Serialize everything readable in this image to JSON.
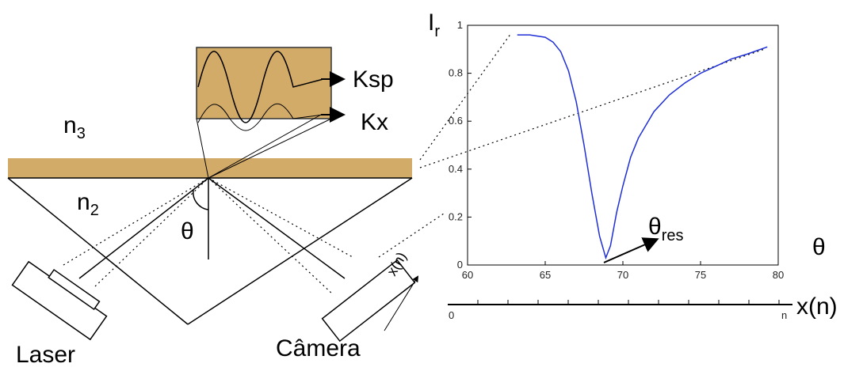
{
  "diagram": {
    "medium_top": {
      "base": "n",
      "sub": "3"
    },
    "medium_prism": {
      "base": "n",
      "sub": "2"
    },
    "angle": "θ",
    "laser": "Laser",
    "camera": "Câmera",
    "wave_sp": "Ksp",
    "wave_x": "Kx",
    "camera_axis": "x(n)",
    "scale": {
      "start": "0",
      "end": "n",
      "label": "x(n)"
    }
  },
  "chart_data": {
    "type": "line",
    "y_label": {
      "base": "I",
      "sub": "r"
    },
    "x_label": "θ",
    "annotation": {
      "base": "θ",
      "sub": "res"
    },
    "x": [
      63.2,
      64,
      65,
      65.5,
      66,
      66.5,
      67,
      67.5,
      68,
      68.5,
      68.9,
      69.2,
      69.6,
      70,
      70.5,
      71,
      72,
      73,
      74,
      75,
      76,
      77,
      78,
      79.3
    ],
    "series": [
      {
        "color": "#1f2fd6",
        "values": [
          0.96,
          0.96,
          0.95,
          0.93,
          0.89,
          0.81,
          0.68,
          0.5,
          0.3,
          0.12,
          0.03,
          0.08,
          0.22,
          0.33,
          0.45,
          0.53,
          0.64,
          0.71,
          0.76,
          0.8,
          0.83,
          0.86,
          0.88,
          0.91
        ]
      }
    ],
    "xlim": [
      60,
      80
    ],
    "ylim": [
      0,
      1
    ],
    "xticks": [
      60,
      65,
      70,
      75,
      80
    ],
    "yticks": [
      0,
      0.2,
      0.4,
      0.6,
      0.8,
      1
    ]
  }
}
